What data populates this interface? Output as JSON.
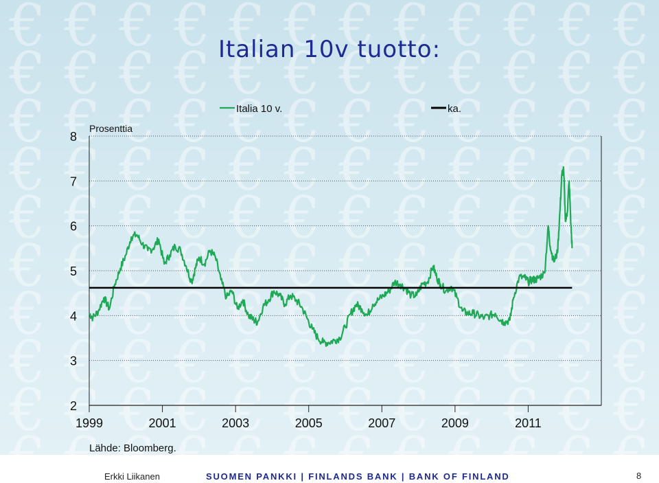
{
  "slide": {
    "title": "Italian 10v tuotto:",
    "footer": {
      "author": "Erkki Liikanen",
      "center": "SUOMEN PANKKI | FINLANDS BANK | BANK OF FINLAND",
      "page": "8"
    },
    "colors": {
      "title": "#1d2a8f",
      "background": "#cfe6ef"
    },
    "background_icon": "euro-sign"
  },
  "chart_data": {
    "type": "line",
    "ylabel": "Prosenttia",
    "ylim": [
      2,
      8
    ],
    "yticks": [
      "2",
      "3",
      "4",
      "5",
      "6",
      "7",
      "8"
    ],
    "xlim": [
      1999,
      2013
    ],
    "xticks": [
      "1999",
      "2001",
      "2003",
      "2005",
      "2007",
      "2009",
      "2011"
    ],
    "grid": "horizontal dotted",
    "legend_placement": "top",
    "source": "Lähde: Bloomberg.",
    "series": [
      {
        "name": "Italia 10 v.",
        "color": "#1fa855",
        "x": [
          1999.0,
          1999.1,
          1999.25,
          1999.4,
          1999.55,
          1999.7,
          1999.85,
          2000.0,
          2000.15,
          2000.3,
          2000.45,
          2000.6,
          2000.75,
          2000.9,
          2001.05,
          2001.2,
          2001.35,
          2001.5,
          2001.65,
          2001.8,
          2001.9,
          2002.0,
          2002.15,
          2002.3,
          2002.45,
          2002.6,
          2002.75,
          2002.9,
          2003.05,
          2003.2,
          2003.35,
          2003.5,
          2003.6,
          2003.75,
          2003.9,
          2004.05,
          2004.2,
          2004.35,
          2004.5,
          2004.65,
          2004.8,
          2004.95,
          2005.1,
          2005.25,
          2005.4,
          2005.55,
          2005.7,
          2005.85,
          2006.0,
          2006.15,
          2006.3,
          2006.45,
          2006.6,
          2006.75,
          2006.9,
          2007.05,
          2007.2,
          2007.35,
          2007.5,
          2007.65,
          2007.8,
          2007.95,
          2008.1,
          2008.25,
          2008.4,
          2008.5,
          2008.6,
          2008.75,
          2008.9,
          2009.05,
          2009.2,
          2009.35,
          2009.5,
          2009.65,
          2009.8,
          2009.95,
          2010.1,
          2010.25,
          2010.35,
          2010.5,
          2010.6,
          2010.75,
          2010.9,
          2011.0,
          2011.1,
          2011.2,
          2011.3,
          2011.45,
          2011.55,
          2011.6,
          2011.7,
          2011.8,
          2011.87,
          2011.92,
          2011.97,
          2012.02,
          2012.07,
          2012.12,
          2012.17,
          2012.2
        ],
        "y": [
          4.05,
          3.95,
          4.1,
          4.4,
          4.15,
          4.7,
          5.05,
          5.35,
          5.75,
          5.8,
          5.6,
          5.45,
          5.5,
          5.7,
          5.15,
          5.35,
          5.55,
          5.45,
          5.1,
          4.75,
          5.05,
          5.3,
          5.15,
          5.45,
          5.3,
          4.8,
          4.4,
          4.55,
          4.15,
          4.35,
          4.0,
          3.9,
          3.85,
          4.2,
          4.35,
          4.55,
          4.45,
          4.25,
          4.45,
          4.35,
          4.2,
          3.95,
          3.7,
          3.5,
          3.4,
          3.4,
          3.45,
          3.5,
          3.75,
          4.05,
          4.25,
          4.15,
          4.0,
          4.25,
          4.35,
          4.45,
          4.55,
          4.75,
          4.7,
          4.6,
          4.45,
          4.45,
          4.7,
          4.75,
          5.1,
          4.85,
          4.7,
          4.55,
          4.65,
          4.4,
          4.1,
          4.05,
          4.05,
          4.0,
          3.95,
          4.0,
          4.05,
          3.9,
          3.85,
          3.9,
          4.4,
          4.85,
          4.85,
          4.75,
          4.8,
          4.8,
          4.85,
          4.95,
          6.0,
          5.55,
          5.2,
          5.4,
          6.35,
          7.15,
          7.25,
          6.1,
          6.3,
          7.0,
          6.0,
          5.5
        ]
      },
      {
        "name": "ka.",
        "color": "#000000",
        "x": [
          1999.0,
          2012.2
        ],
        "y": [
          4.62,
          4.62
        ]
      }
    ]
  }
}
